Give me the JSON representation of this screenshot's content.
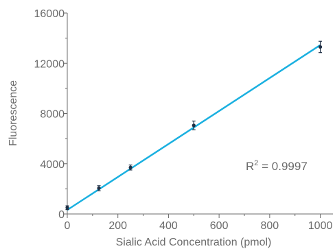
{
  "chart_data": {
    "type": "scatter",
    "title": "",
    "xlabel": "Sialic Acid Concentration (pmol)",
    "ylabel": "Fluorescence",
    "xlim": [
      0,
      1050
    ],
    "ylim": [
      0,
      16000
    ],
    "x_ticks": [
      "0",
      "200",
      "400",
      "600",
      "800",
      "1000"
    ],
    "y_ticks": [
      "0",
      "4000",
      "8000",
      "12000",
      "16000"
    ],
    "grid": false,
    "series": [
      {
        "points": [
          {
            "x": 0,
            "y": 500,
            "err": 150
          },
          {
            "x": 125,
            "y": 2050,
            "err": 200
          },
          {
            "x": 250,
            "y": 3700,
            "err": 200
          },
          {
            "x": 500,
            "y": 7050,
            "err": 350
          },
          {
            "x": 1000,
            "y": 13300,
            "err": 450
          }
        ],
        "color": "#1f2f45"
      }
    ],
    "fit_line": {
      "x": [
        0,
        1000
      ],
      "y": [
        320,
        13450
      ],
      "color": "#1ab0e0"
    },
    "annotation": {
      "text_main": "R",
      "text_sup": "2",
      "text_rest": " = 0.9997"
    }
  }
}
